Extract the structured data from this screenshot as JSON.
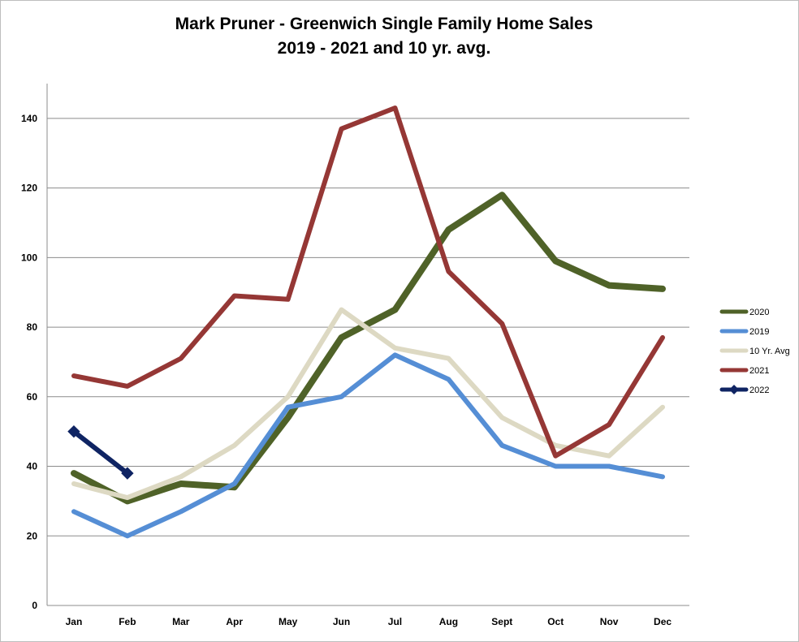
{
  "chart_data": {
    "type": "line",
    "title_line1": "Mark Pruner - Greenwich Single Family Home Sales",
    "title_line2": "2019 - 2021 and 10 yr. avg.",
    "categories": [
      "Jan",
      "Feb",
      "Mar",
      "Apr",
      "May",
      "Jun",
      "Jul",
      "Aug",
      "Sept",
      "Oct",
      "Nov",
      "Dec"
    ],
    "ylim": [
      0,
      150
    ],
    "yticks": [
      0,
      20,
      40,
      60,
      80,
      100,
      120,
      140
    ],
    "grid": true,
    "legend_position": "right",
    "series": [
      {
        "name": "2020",
        "color": "#4f6228",
        "values": [
          38,
          30,
          35,
          34,
          54,
          77,
          85,
          108,
          118,
          99,
          92,
          91
        ]
      },
      {
        "name": "2019",
        "color": "#558ed5",
        "values": [
          27,
          20,
          27,
          35,
          57,
          60,
          72,
          65,
          46,
          40,
          40,
          37
        ]
      },
      {
        "name": "10 Yr. Avg",
        "color": "#ddd9c3",
        "values": [
          35,
          31,
          37,
          46,
          60,
          85,
          74,
          71,
          54,
          46,
          43,
          57
        ]
      },
      {
        "name": "2021",
        "color": "#953735",
        "values": [
          66,
          63,
          71,
          89,
          88,
          137,
          143,
          96,
          81,
          43,
          52,
          77
        ]
      },
      {
        "name": "2022",
        "color": "#0f2463",
        "marker": "diamond",
        "values": [
          50,
          38,
          null,
          null,
          null,
          null,
          null,
          null,
          null,
          null,
          null,
          null
        ]
      }
    ]
  }
}
